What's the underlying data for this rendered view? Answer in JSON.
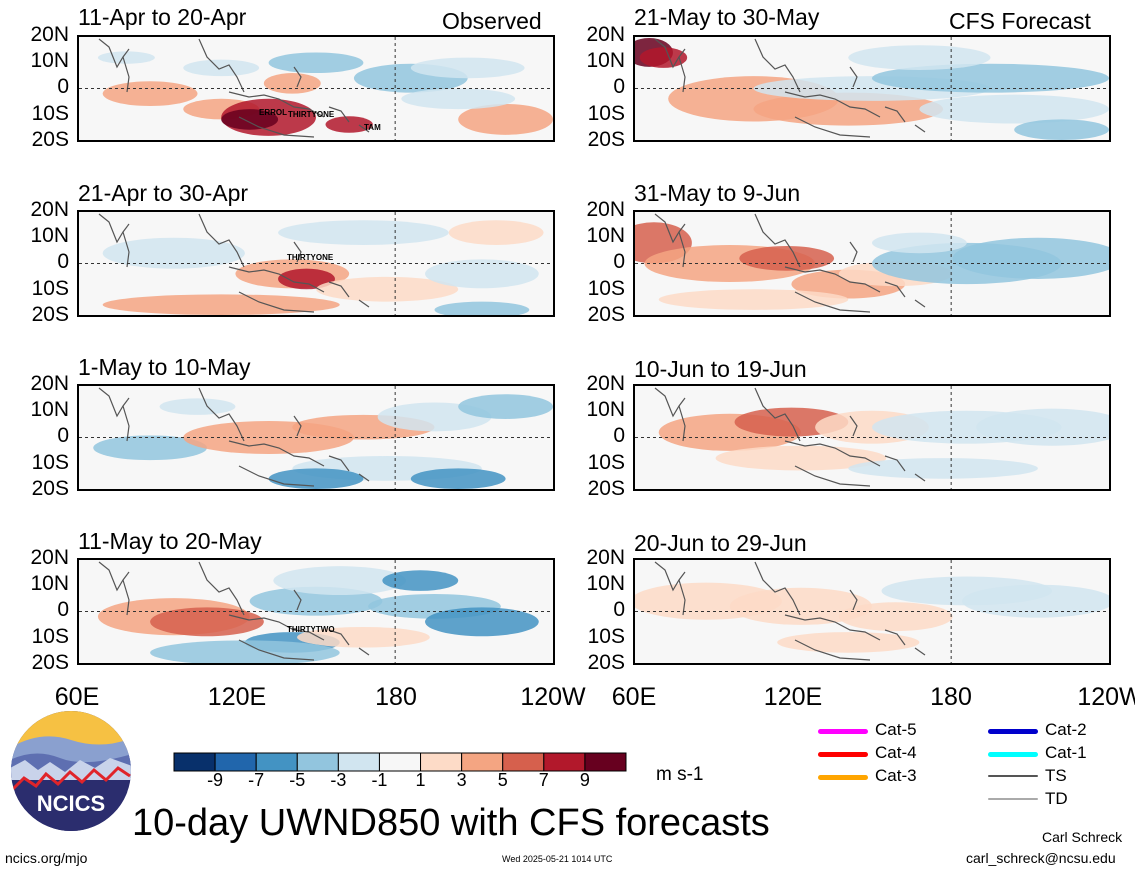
{
  "panels": {
    "observed": {
      "tag": "Observed",
      "titles": [
        "11-Apr to 20-Apr",
        "21-Apr to 30-Apr",
        "1-May to 10-May",
        "11-May to 20-May"
      ],
      "storms": [
        {
          "panel": 0,
          "name": "ERROL"
        },
        {
          "panel": 0,
          "name": "THIRTYONE"
        },
        {
          "panel": 0,
          "name": "TAM"
        },
        {
          "panel": 1,
          "name": "THIRTYONE"
        },
        {
          "panel": 3,
          "name": "THIRTYTWO"
        }
      ]
    },
    "forecast": {
      "tag": "CFS Forecast",
      "titles": [
        "21-May to 30-May",
        "31-May to 9-Jun",
        "10-Jun to 19-Jun",
        "20-Jun to 29-Jun"
      ]
    }
  },
  "lat_labels": [
    "20N",
    "10N",
    "0",
    "10S",
    "20S"
  ],
  "lon_labels": [
    "60E",
    "120E",
    "180",
    "120W"
  ],
  "colorbar": {
    "labels": [
      "-9",
      "-7",
      "-5",
      "-3",
      "-1",
      "1",
      "3",
      "5",
      "7",
      "9"
    ],
    "colors": [
      "#08306b",
      "#2166ac",
      "#4393c3",
      "#92c5de",
      "#d1e5f0",
      "#f7f7f7",
      "#fddbc7",
      "#f4a582",
      "#d6604d",
      "#b2182b",
      "#67001f"
    ],
    "units": "m s-1"
  },
  "legend": [
    {
      "label": "Cat-5",
      "color": "#ff00ff"
    },
    {
      "label": "Cat-4",
      "color": "#ff0000"
    },
    {
      "label": "Cat-3",
      "color": "#ffa500"
    },
    {
      "label": "Cat-2",
      "color": "#0000cc"
    },
    {
      "label": "Cat-1",
      "color": "#00ffff"
    },
    {
      "label": "TS",
      "color": "#555555"
    },
    {
      "label": "TD",
      "color": "#aaaaaa"
    }
  ],
  "title": "10-day UWND850 with CFS forecasts",
  "logo": "NCICS",
  "footer": {
    "url": "ncics.org/mjo",
    "timestamp": "Wed 2025-05-21 1014 UTC",
    "author": "Carl Schreck",
    "email": "carl_schreck@ncsu.edu"
  }
}
